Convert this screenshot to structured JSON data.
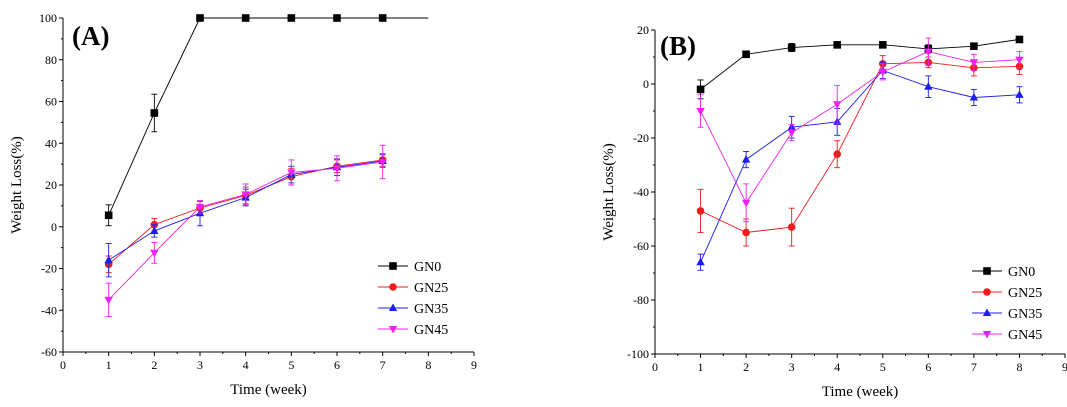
{
  "chart_data": [
    {
      "type": "line",
      "panel_label": "(A)",
      "xlabel": "Time (week)",
      "ylabel": "Weight Loss(%)",
      "xlim": [
        0,
        9
      ],
      "ylim": [
        -60,
        100
      ],
      "xticks": [
        0,
        1,
        2,
        3,
        4,
        5,
        6,
        7,
        8,
        9
      ],
      "yticks": [
        -60,
        -40,
        -20,
        0,
        20,
        40,
        60,
        80,
        100
      ],
      "grid": false,
      "legend_position": "bottom-right",
      "x": [
        1,
        2,
        3,
        4,
        5,
        6,
        7
      ],
      "series": [
        {
          "name": "GN0",
          "color": "#000000",
          "marker": "square",
          "values": [
            5.5,
            54.5,
            100,
            100,
            100,
            100,
            100
          ],
          "errors": [
            5,
            9,
            0,
            0,
            0,
            0,
            0
          ],
          "extend_to_x": 8
        },
        {
          "name": "GN25",
          "color": "#ee1c1c",
          "marker": "circle",
          "values": [
            -18,
            1,
            9,
            15,
            24,
            29,
            32
          ],
          "errors": [
            4,
            3,
            3,
            4,
            4,
            3,
            3
          ]
        },
        {
          "name": "GN35",
          "color": "#1c1cee",
          "marker": "triangle-up",
          "values": [
            -16,
            -2,
            6.5,
            14,
            25,
            28.5,
            31.5
          ],
          "errors": [
            8,
            3,
            6,
            4,
            4,
            4,
            3
          ]
        },
        {
          "name": "GN45",
          "color": "#ee22ee",
          "marker": "triangle-down",
          "values": [
            -35,
            -12.5,
            9.5,
            15.5,
            26,
            28,
            31
          ],
          "errors": [
            8,
            5,
            3,
            5,
            6,
            6,
            8
          ]
        }
      ]
    },
    {
      "type": "line",
      "panel_label": "(B)",
      "xlabel": "Time (week)",
      "ylabel": "Weight Loss(%)",
      "xlim": [
        0,
        9
      ],
      "ylim": [
        -100,
        20
      ],
      "xticks": [
        0,
        1,
        2,
        3,
        4,
        5,
        6,
        7,
        8,
        9
      ],
      "yticks": [
        -100,
        -80,
        -60,
        -40,
        -20,
        0,
        20
      ],
      "grid": false,
      "legend_position": "bottom-right",
      "x": [
        1,
        2,
        3,
        4,
        5,
        6,
        7,
        8
      ],
      "series": [
        {
          "name": "GN0",
          "color": "#000000",
          "marker": "square",
          "values": [
            -2,
            11,
            13.5,
            14.5,
            14.5,
            13,
            14,
            16.5
          ],
          "errors": [
            3.5,
            1,
            1.5,
            1,
            1,
            1.5,
            1,
            1
          ]
        },
        {
          "name": "GN25",
          "color": "#ee1c1c",
          "marker": "circle",
          "values": [
            -47,
            -55,
            -53,
            -26,
            7.5,
            8,
            6,
            6.5
          ],
          "errors": [
            8,
            5,
            7,
            5,
            3,
            2,
            3,
            3
          ]
        },
        {
          "name": "GN35",
          "color": "#1c1cee",
          "marker": "triangle-up",
          "values": [
            -66,
            -28,
            -16,
            -14,
            5,
            -1,
            -5,
            -4
          ],
          "errors": [
            3,
            3,
            4,
            5,
            3,
            4,
            3,
            3
          ]
        },
        {
          "name": "GN45",
          "color": "#ee22ee",
          "marker": "triangle-down",
          "values": [
            -10,
            -44,
            -18,
            -7.5,
            4.5,
            12,
            8,
            9
          ],
          "errors": [
            6,
            7,
            3,
            7,
            3,
            5,
            3,
            3
          ]
        }
      ]
    }
  ]
}
